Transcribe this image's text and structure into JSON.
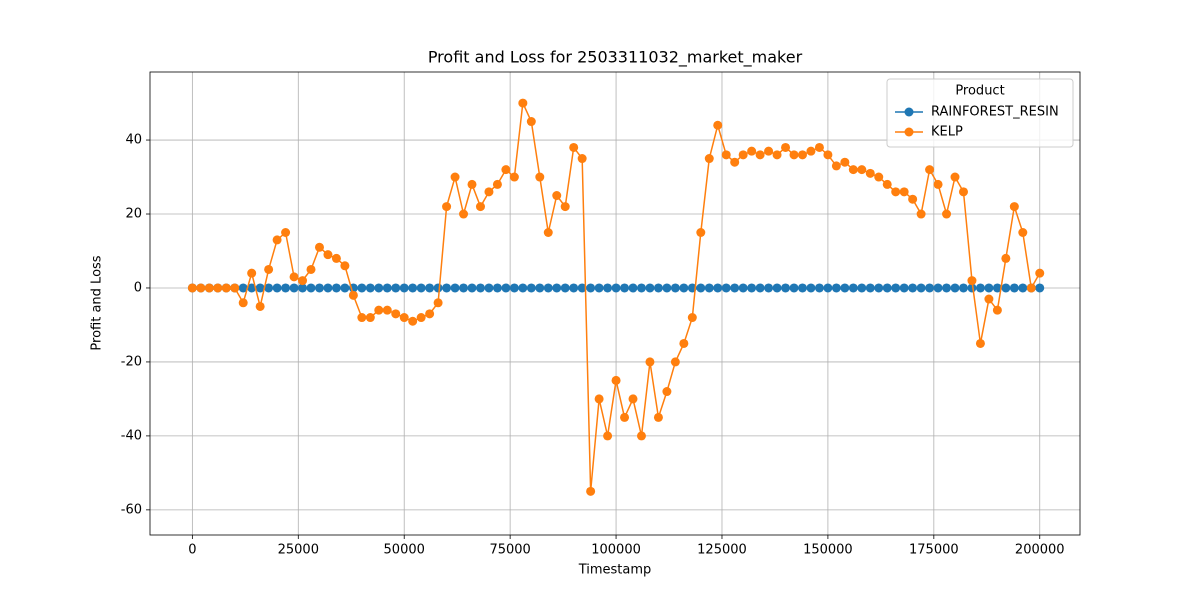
{
  "chart_data": {
    "type": "line",
    "title": "Profit and Loss for 2503311032_market_maker",
    "x_label": "Timestamp",
    "y_label": "Profit and Loss",
    "legend_title": "Product",
    "legend_position": "upper right",
    "grid": true,
    "xlim": [
      -10000,
      209500
    ],
    "ylim": [
      -66.8,
      58.4
    ],
    "xticks": [
      0,
      25000,
      50000,
      75000,
      100000,
      125000,
      150000,
      175000,
      200000
    ],
    "yticks": [
      -60,
      -40,
      -20,
      0,
      20,
      40
    ],
    "x": [
      0,
      2000,
      4000,
      6000,
      8000,
      10000,
      12000,
      14000,
      16000,
      18000,
      20000,
      22000,
      24000,
      26000,
      28000,
      30000,
      32000,
      34000,
      36000,
      38000,
      40000,
      42000,
      44000,
      46000,
      48000,
      50000,
      52000,
      54000,
      56000,
      58000,
      60000,
      62000,
      64000,
      66000,
      68000,
      70000,
      72000,
      74000,
      76000,
      78000,
      80000,
      82000,
      84000,
      86000,
      88000,
      90000,
      92000,
      94000,
      96000,
      98000,
      100000,
      102000,
      104000,
      106000,
      108000,
      110000,
      112000,
      114000,
      116000,
      118000,
      120000,
      122000,
      124000,
      126000,
      128000,
      130000,
      132000,
      134000,
      136000,
      138000,
      140000,
      142000,
      144000,
      146000,
      148000,
      150000,
      152000,
      154000,
      156000,
      158000,
      160000,
      162000,
      164000,
      166000,
      168000,
      170000,
      172000,
      174000,
      176000,
      178000,
      180000,
      182000,
      184000,
      186000,
      188000,
      190000,
      192000,
      194000,
      196000,
      198000,
      200000
    ],
    "series": [
      {
        "name": "RAINFOREST_RESIN",
        "color": "#1f77b4",
        "values": [
          0,
          0,
          0,
          0,
          0,
          0,
          0,
          0,
          0,
          0,
          0,
          0,
          0,
          0,
          0,
          0,
          0,
          0,
          0,
          0,
          0,
          0,
          0,
          0,
          0,
          0,
          0,
          0,
          0,
          0,
          0,
          0,
          0,
          0,
          0,
          0,
          0,
          0,
          0,
          0,
          0,
          0,
          0,
          0,
          0,
          0,
          0,
          0,
          0,
          0,
          0,
          0,
          0,
          0,
          0,
          0,
          0,
          0,
          0,
          0,
          0,
          0,
          0,
          0,
          0,
          0,
          0,
          0,
          0,
          0,
          0,
          0,
          0,
          0,
          0,
          0,
          0,
          0,
          0,
          0,
          0,
          0,
          0,
          0,
          0,
          0,
          0,
          0,
          0,
          0,
          0,
          0,
          0,
          0,
          0,
          0,
          0,
          0,
          0,
          0,
          0
        ]
      },
      {
        "name": "KELP",
        "color": "#ff7f0e",
        "values": [
          0,
          0,
          0,
          0,
          0,
          0,
          -4,
          4,
          -5,
          5,
          13,
          15,
          3,
          2,
          5,
          11,
          9,
          8,
          6,
          -2,
          -8,
          -8,
          -6,
          -6,
          -7,
          -8,
          -9,
          -8,
          -7,
          -4,
          22,
          30,
          20,
          28,
          22,
          26,
          28,
          32,
          30,
          50,
          45,
          30,
          15,
          25,
          22,
          38,
          35,
          -55,
          -30,
          -40,
          -25,
          -35,
          -30,
          -40,
          -20,
          -35,
          -28,
          -20,
          -15,
          -8,
          15,
          35,
          44,
          36,
          34,
          36,
          37,
          36,
          37,
          36,
          38,
          36,
          36,
          37,
          38,
          36,
          33,
          34,
          32,
          32,
          31,
          30,
          28,
          26,
          26,
          24,
          20,
          32,
          28,
          20,
          30,
          26,
          2,
          -15,
          -3,
          -6,
          8,
          22,
          15,
          0,
          4
        ]
      }
    ]
  }
}
